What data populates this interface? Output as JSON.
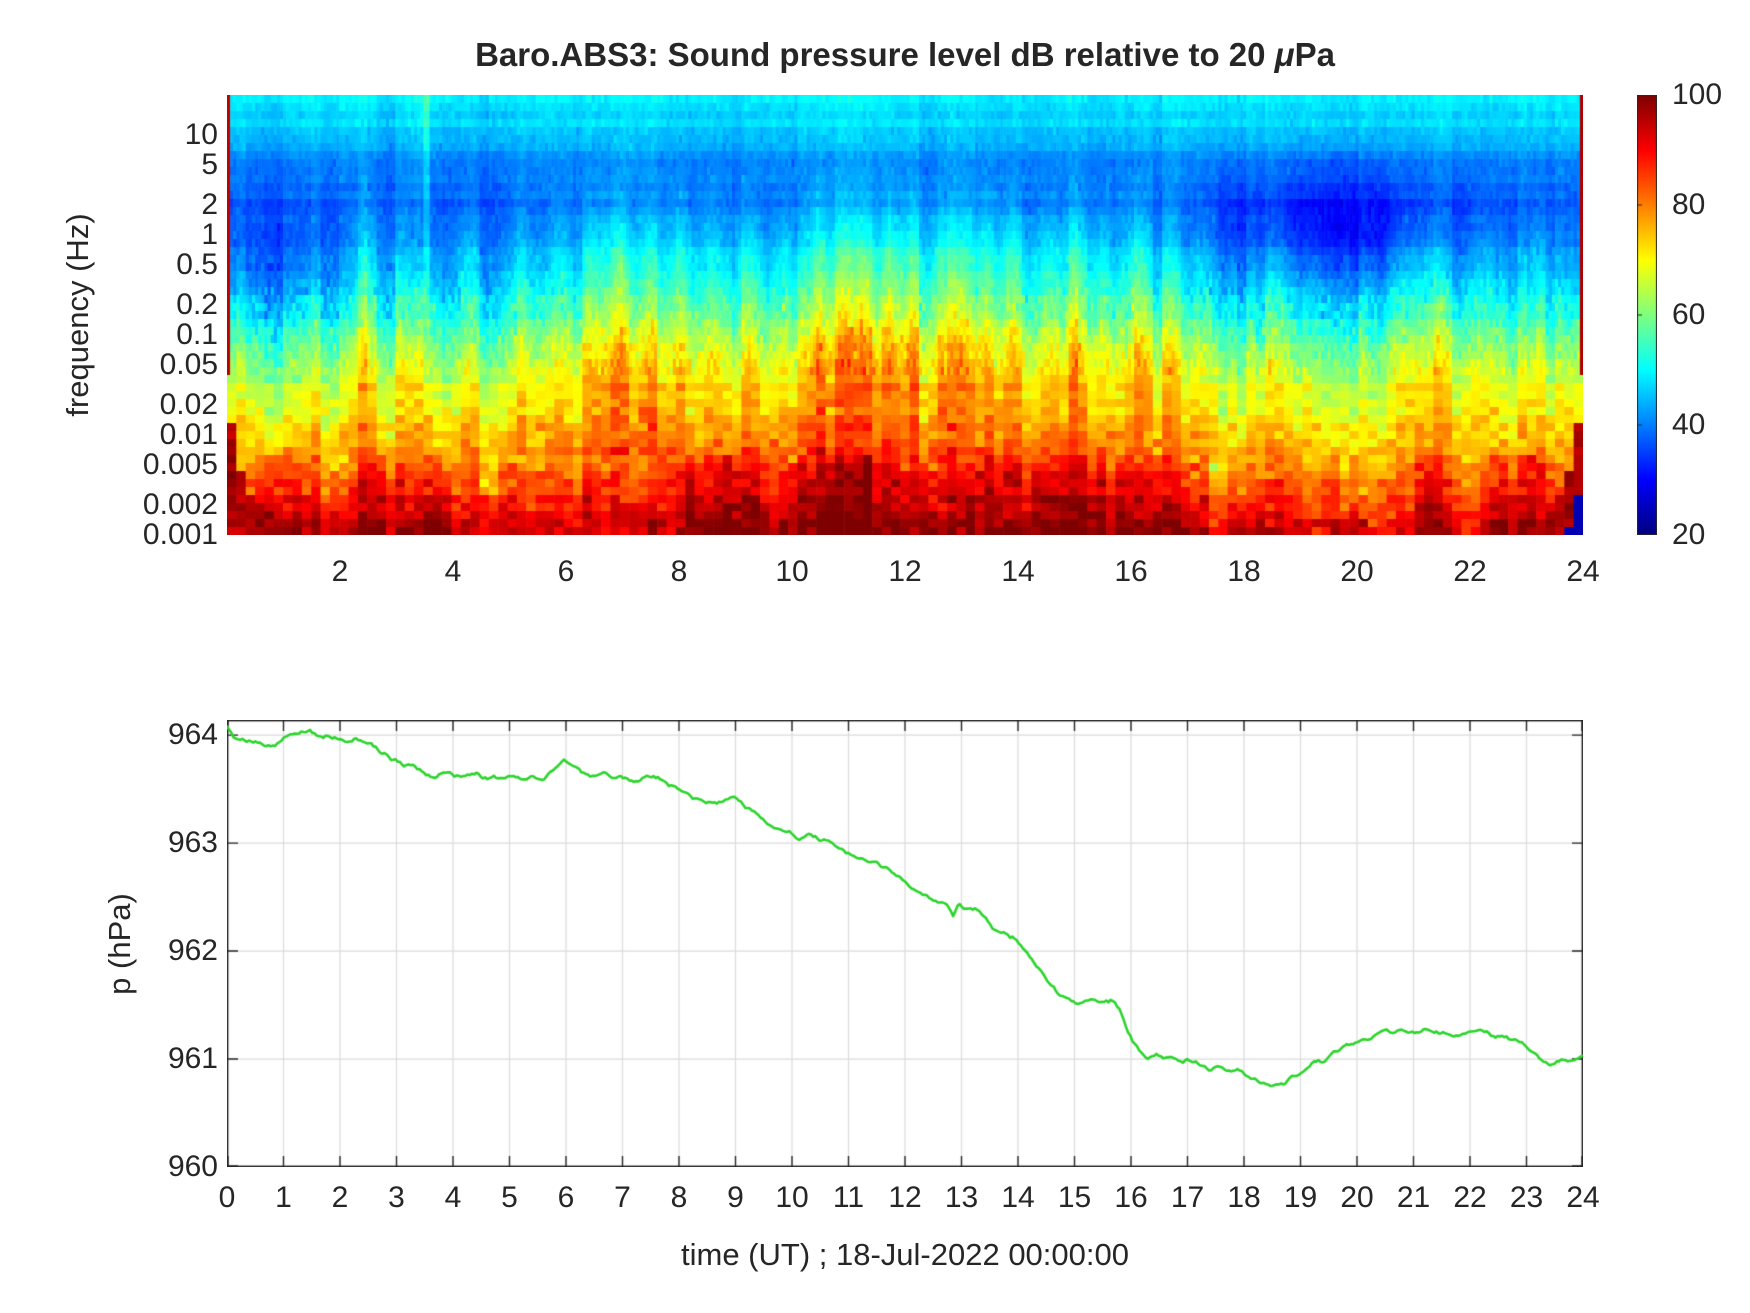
{
  "figure": {
    "background": "#ffffff",
    "text_color": "#262626",
    "grid_color": "#dbdbdb",
    "frame_color": "#262626"
  },
  "title": {
    "pre": "Baro.ABS3: Sound pressure level dB relative to 20 ",
    "mu": "μ",
    "post": "Pa"
  },
  "chart_data": [
    {
      "name": "spectrogram",
      "type": "heatmap",
      "title": "Baro.ABS3: Sound pressure level dB relative to 20 μPa",
      "ylabel": "frequency (Hz)",
      "xlabel": "",
      "x_range_hours": [
        0,
        24
      ],
      "freq_range_hz": [
        0.001,
        25
      ],
      "log_top": 1.4,
      "log_span": 4.4,
      "xticks": [
        2,
        4,
        6,
        8,
        10,
        12,
        14,
        16,
        18,
        20,
        22,
        24
      ],
      "ytick_labels": [
        "10",
        "5",
        "2",
        "1",
        "0.5",
        "0.2",
        "0.1",
        "0.05",
        "0.02",
        "0.01",
        "0.005",
        "0.002",
        "0.001"
      ],
      "ytick_values": [
        10,
        5,
        2,
        1,
        0.5,
        0.2,
        0.1,
        0.05,
        0.02,
        0.01,
        0.005,
        0.002,
        0.001
      ],
      "colorbar": {
        "min": 20,
        "max": 100,
        "ticks": [
          100,
          80,
          60,
          40,
          20
        ],
        "colormap": "jet"
      },
      "grid": {
        "nt": 145,
        "nf": 55,
        "seed": 1234567
      },
      "db_profile": [
        [
          -3.0,
          96
        ],
        [
          -2.7,
          88
        ],
        [
          -2.4,
          80
        ],
        [
          -2.0,
          73
        ],
        [
          -1.7,
          68
        ],
        [
          -1.3,
          61
        ],
        [
          -1.0,
          55
        ],
        [
          -0.7,
          48
        ],
        [
          -0.3,
          42
        ],
        [
          0.0,
          39
        ],
        [
          0.3,
          37
        ],
        [
          0.7,
          40
        ],
        [
          1.0,
          46
        ],
        [
          1.4,
          49
        ]
      ],
      "plume_gain": {
        "low": [
          -2.35,
          0.45,
          6
        ],
        "mid": [
          -1.15,
          0.95,
          17
        ],
        "high": [
          -0.1,
          0.6,
          8
        ]
      },
      "plumes": [
        [
          2.5,
          0.25,
          0.5
        ],
        [
          3.0,
          0.2,
          0.35
        ],
        [
          4.3,
          0.3,
          0.45
        ],
        [
          5.2,
          0.25,
          0.4
        ],
        [
          5.9,
          0.2,
          0.5
        ],
        [
          6.5,
          0.3,
          0.75
        ],
        [
          6.95,
          0.2,
          0.9
        ],
        [
          7.5,
          0.3,
          0.7
        ],
        [
          8.05,
          0.25,
          0.85
        ],
        [
          8.6,
          0.25,
          0.7
        ],
        [
          9.2,
          0.3,
          0.8
        ],
        [
          9.9,
          0.25,
          0.6
        ],
        [
          10.45,
          0.25,
          0.95
        ],
        [
          10.9,
          0.2,
          0.85
        ],
        [
          11.3,
          0.25,
          1.0
        ],
        [
          11.75,
          0.2,
          0.9
        ],
        [
          12.15,
          0.25,
          0.95
        ],
        [
          12.6,
          0.2,
          0.85
        ],
        [
          13.0,
          0.25,
          1.0
        ],
        [
          13.45,
          0.2,
          0.9
        ],
        [
          13.9,
          0.25,
          0.95
        ],
        [
          14.5,
          0.3,
          0.7
        ],
        [
          15.05,
          0.25,
          0.9
        ],
        [
          15.5,
          0.2,
          0.75
        ],
        [
          16.1,
          0.3,
          0.85
        ],
        [
          16.7,
          0.25,
          0.55
        ],
        [
          17.3,
          0.2,
          0.35
        ],
        [
          18.6,
          0.3,
          0.3
        ],
        [
          20.9,
          0.3,
          0.4
        ],
        [
          21.4,
          0.25,
          0.45
        ],
        [
          22.3,
          0.3,
          0.4
        ],
        [
          23.2,
          0.25,
          0.35
        ]
      ],
      "events": {
        "spike_hour": 3.53,
        "quiet_night": {
          "t": 19.8,
          "w": 2.2,
          "depth": 7,
          "logf": 0.1,
          "fw": 0.55
        },
        "quiet_dawn": {
          "t": 0.8,
          "w": 1.2,
          "depth": 3,
          "logf": -0.35,
          "fw": 0.5
        },
        "day_bottom_boost": {
          "t": 12,
          "w": 6,
          "amp": 3,
          "logf": -2.7,
          "fw": 0.5
        },
        "eve_bottom_dip": {
          "t": 20.8,
          "w": 2.8,
          "amp": 4,
          "logf": -2.8,
          "fw": 0.6
        },
        "edge_k_hours": 0.001
      }
    },
    {
      "name": "pressure",
      "type": "line",
      "ylabel": "p (hPa)",
      "xlabel": "time (UT) ; 18-Jul-2022 00:00:00",
      "line_color": "#2bd42b",
      "line_width": 2.6,
      "xlim": [
        0,
        24
      ],
      "ylim": [
        960,
        964.14
      ],
      "xticks": [
        0,
        1,
        2,
        3,
        4,
        5,
        6,
        7,
        8,
        9,
        10,
        11,
        12,
        13,
        14,
        15,
        16,
        17,
        18,
        19,
        20,
        21,
        22,
        23,
        24
      ],
      "yticks": [
        964,
        963,
        962,
        961,
        960
      ],
      "grid": true,
      "noise_seed": 424242,
      "points": [
        [
          0,
          964.08
        ],
        [
          0.15,
          964.0
        ],
        [
          0.3,
          963.96
        ],
        [
          0.5,
          963.95
        ],
        [
          0.7,
          963.88
        ],
        [
          0.85,
          963.86
        ],
        [
          1.0,
          963.95
        ],
        [
          1.2,
          964.0
        ],
        [
          1.45,
          964.04
        ],
        [
          1.7,
          963.97
        ],
        [
          1.9,
          963.98
        ],
        [
          2.1,
          963.92
        ],
        [
          2.3,
          963.96
        ],
        [
          2.5,
          963.93
        ],
        [
          2.7,
          963.86
        ],
        [
          2.9,
          963.78
        ],
        [
          3.1,
          963.72
        ],
        [
          3.3,
          963.74
        ],
        [
          3.5,
          963.66
        ],
        [
          3.7,
          963.62
        ],
        [
          3.85,
          963.66
        ],
        [
          4.0,
          963.61
        ],
        [
          4.2,
          963.59
        ],
        [
          4.4,
          963.62
        ],
        [
          4.6,
          963.58
        ],
        [
          4.8,
          963.6
        ],
        [
          5.0,
          963.62
        ],
        [
          5.2,
          963.58
        ],
        [
          5.4,
          963.61
        ],
        [
          5.6,
          963.6
        ],
        [
          5.8,
          963.68
        ],
        [
          5.95,
          963.78
        ],
        [
          6.1,
          963.72
        ],
        [
          6.3,
          963.63
        ],
        [
          6.5,
          963.6
        ],
        [
          6.65,
          963.66
        ],
        [
          6.8,
          963.63
        ],
        [
          7.0,
          963.6
        ],
        [
          7.2,
          963.55
        ],
        [
          7.4,
          963.59
        ],
        [
          7.6,
          963.6
        ],
        [
          7.8,
          963.55
        ],
        [
          8.0,
          963.51
        ],
        [
          8.2,
          963.45
        ],
        [
          8.4,
          963.4
        ],
        [
          8.6,
          963.34
        ],
        [
          8.8,
          963.38
        ],
        [
          9.0,
          963.42
        ],
        [
          9.15,
          963.33
        ],
        [
          9.3,
          963.28
        ],
        [
          9.5,
          963.2
        ],
        [
          9.7,
          963.13
        ],
        [
          9.9,
          963.11
        ],
        [
          10.1,
          963.04
        ],
        [
          10.3,
          963.07
        ],
        [
          10.5,
          962.99
        ],
        [
          10.65,
          963.03
        ],
        [
          10.8,
          962.98
        ],
        [
          11.0,
          962.93
        ],
        [
          11.2,
          962.88
        ],
        [
          11.35,
          962.84
        ],
        [
          11.5,
          962.82
        ],
        [
          11.7,
          962.76
        ],
        [
          11.9,
          962.7
        ],
        [
          12.1,
          962.6
        ],
        [
          12.3,
          962.55
        ],
        [
          12.5,
          962.47
        ],
        [
          12.7,
          962.42
        ],
        [
          12.85,
          962.3
        ],
        [
          12.95,
          962.42
        ],
        [
          13.1,
          962.36
        ],
        [
          13.3,
          962.39
        ],
        [
          13.45,
          962.32
        ],
        [
          13.6,
          962.22
        ],
        [
          13.8,
          962.16
        ],
        [
          14.0,
          962.08
        ],
        [
          14.15,
          961.98
        ],
        [
          14.3,
          961.9
        ],
        [
          14.5,
          961.74
        ],
        [
          14.7,
          961.63
        ],
        [
          14.9,
          961.56
        ],
        [
          15.1,
          961.53
        ],
        [
          15.3,
          961.56
        ],
        [
          15.5,
          961.53
        ],
        [
          15.65,
          961.55
        ],
        [
          15.8,
          961.44
        ],
        [
          16.0,
          961.2
        ],
        [
          16.15,
          961.08
        ],
        [
          16.3,
          960.99
        ],
        [
          16.45,
          961.06
        ],
        [
          16.6,
          961.01
        ],
        [
          16.8,
          960.99
        ],
        [
          17.0,
          960.99
        ],
        [
          17.2,
          960.94
        ],
        [
          17.4,
          960.9
        ],
        [
          17.55,
          960.93
        ],
        [
          17.7,
          960.88
        ],
        [
          17.9,
          960.89
        ],
        [
          18.1,
          960.84
        ],
        [
          18.3,
          960.79
        ],
        [
          18.5,
          960.77
        ],
        [
          18.7,
          960.79
        ],
        [
          18.9,
          960.84
        ],
        [
          19.1,
          960.92
        ],
        [
          19.25,
          960.99
        ],
        [
          19.4,
          960.97
        ],
        [
          19.55,
          961.03
        ],
        [
          19.7,
          961.09
        ],
        [
          19.9,
          961.14
        ],
        [
          20.1,
          961.18
        ],
        [
          20.3,
          961.22
        ],
        [
          20.5,
          961.27
        ],
        [
          20.65,
          961.23
        ],
        [
          20.8,
          961.26
        ],
        [
          21.0,
          961.25
        ],
        [
          21.2,
          961.27
        ],
        [
          21.4,
          961.22
        ],
        [
          21.6,
          961.23
        ],
        [
          21.8,
          961.21
        ],
        [
          22.0,
          961.24
        ],
        [
          22.2,
          961.27
        ],
        [
          22.4,
          961.23
        ],
        [
          22.6,
          961.21
        ],
        [
          22.8,
          961.21
        ],
        [
          23.0,
          961.12
        ],
        [
          23.2,
          961.02
        ],
        [
          23.4,
          960.94
        ],
        [
          23.55,
          960.97
        ],
        [
          23.7,
          961.01
        ],
        [
          23.85,
          961.0
        ],
        [
          24,
          961.03
        ]
      ]
    }
  ]
}
